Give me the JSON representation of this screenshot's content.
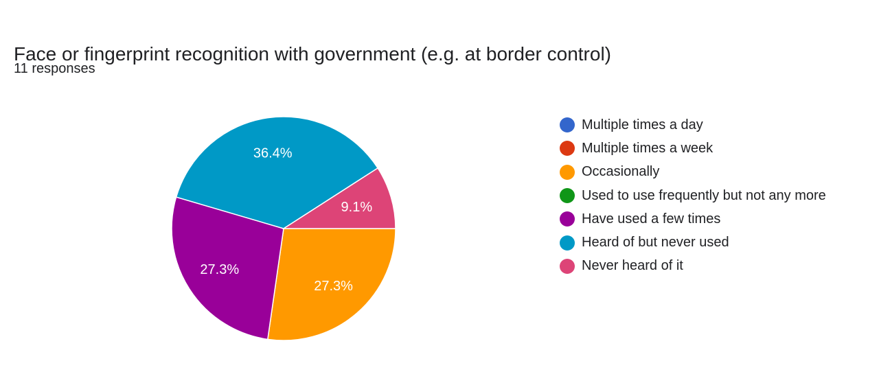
{
  "header": {
    "title": "Face or fingerprint recognition with government (e.g. at border control)",
    "responses": "11 responses"
  },
  "chart_data": {
    "type": "pie",
    "legend_position": "right",
    "slices": [
      {
        "label": "Multiple times a day",
        "count": 0,
        "color": "#3366cc"
      },
      {
        "label": "Multiple times a week",
        "count": 0,
        "color": "#dc3912"
      },
      {
        "label": "Occasionally",
        "count": 3,
        "percent_label": "27.3%",
        "color": "#ff9900"
      },
      {
        "label": "Used to use frequently but not any more",
        "count": 0,
        "color": "#109618"
      },
      {
        "label": "Have used a few times",
        "count": 3,
        "percent_label": "27.3%",
        "color": "#990099"
      },
      {
        "label": "Heard of but never used",
        "count": 4,
        "percent_label": "36.4%",
        "color": "#0099c6"
      },
      {
        "label": "Never heard of it",
        "count": 1,
        "percent_label": "9.1%",
        "color": "#dd4477"
      }
    ]
  }
}
